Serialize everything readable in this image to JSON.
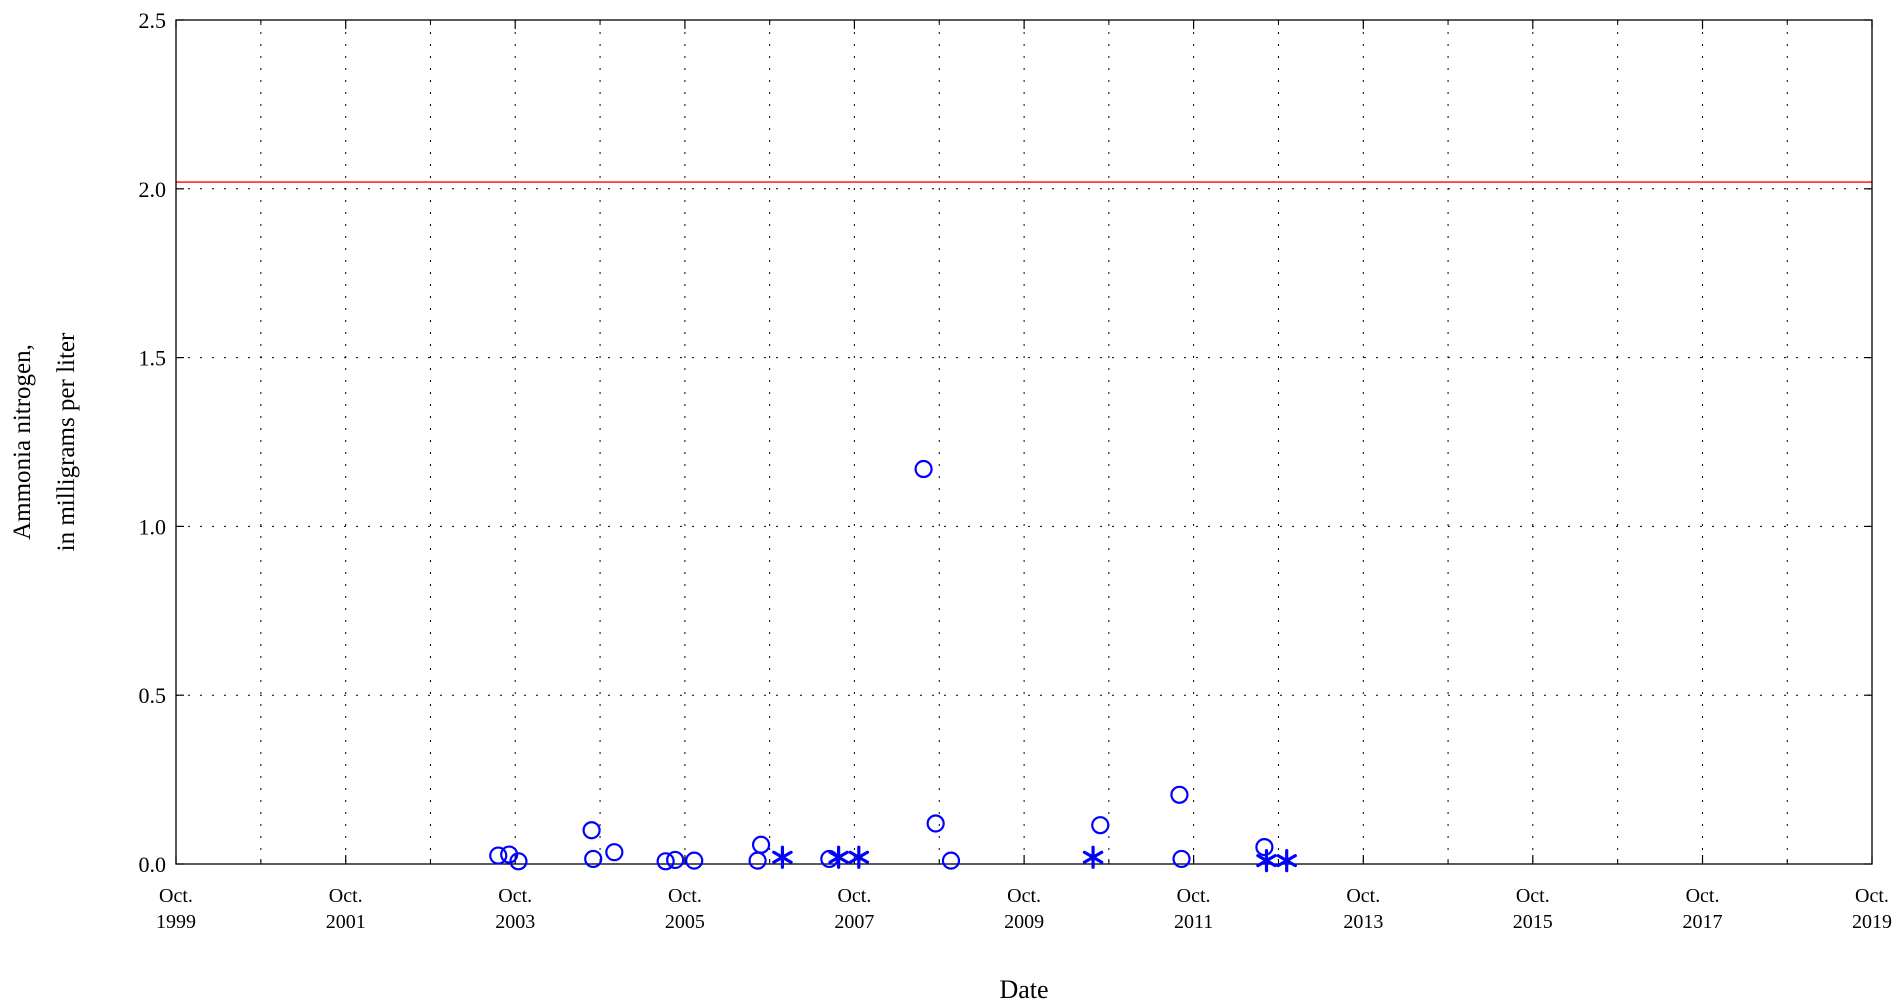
{
  "chart_data": {
    "type": "scatter",
    "title": "",
    "xlabel": "Date",
    "ylabel_line1": "Ammonia nitrogen,",
    "ylabel_line2": "in milligrams per liter",
    "xlim": [
      "1999-10-01",
      "2019-10-01"
    ],
    "ylim": [
      0,
      2.5
    ],
    "y_ticks": [
      {
        "value": 0.0,
        "label": "0.0"
      },
      {
        "value": 0.5,
        "label": "0.5"
      },
      {
        "value": 1.0,
        "label": "1.0"
      },
      {
        "value": 1.5,
        "label": "1.5"
      },
      {
        "value": 2.0,
        "label": "2.0"
      },
      {
        "value": 2.5,
        "label": "2.5"
      }
    ],
    "x_ticks": [
      {
        "date": "1999-10-01",
        "line1": "Oct.",
        "line2": "1999"
      },
      {
        "date": "2001-10-01",
        "line1": "Oct.",
        "line2": "2001"
      },
      {
        "date": "2003-10-01",
        "line1": "Oct.",
        "line2": "2003"
      },
      {
        "date": "2005-10-01",
        "line1": "Oct.",
        "line2": "2005"
      },
      {
        "date": "2007-10-01",
        "line1": "Oct.",
        "line2": "2007"
      },
      {
        "date": "2009-10-01",
        "line1": "Oct.",
        "line2": "2009"
      },
      {
        "date": "2011-10-01",
        "line1": "Oct.",
        "line2": "2011"
      },
      {
        "date": "2013-10-01",
        "line1": "Oct.",
        "line2": "2013"
      },
      {
        "date": "2015-10-01",
        "line1": "Oct.",
        "line2": "2015"
      },
      {
        "date": "2017-10-01",
        "line1": "Oct.",
        "line2": "2017"
      },
      {
        "date": "2019-10-01",
        "line1": "Oct.",
        "line2": "2019"
      }
    ],
    "grid": true,
    "reference_line": {
      "y": 2.02,
      "color": "#ff0000"
    },
    "marker_color": "#0000ff",
    "series": [
      {
        "marker": "circle",
        "points": [
          {
            "x": "2003-07-20",
            "y": 0.025
          },
          {
            "x": "2003-09-05",
            "y": 0.028
          },
          {
            "x": "2003-10-15",
            "y": 0.008
          },
          {
            "x": "2004-08-25",
            "y": 0.1
          },
          {
            "x": "2004-09-01",
            "y": 0.015
          },
          {
            "x": "2004-12-01",
            "y": 0.035
          },
          {
            "x": "2005-07-10",
            "y": 0.008
          },
          {
            "x": "2005-08-20",
            "y": 0.012
          },
          {
            "x": "2005-11-10",
            "y": 0.01
          },
          {
            "x": "2006-08-10",
            "y": 0.01
          },
          {
            "x": "2006-08-25",
            "y": 0.057
          },
          {
            "x": "2007-06-15",
            "y": 0.015
          },
          {
            "x": "2008-07-25",
            "y": 1.17
          },
          {
            "x": "2008-09-15",
            "y": 0.12
          },
          {
            "x": "2008-11-20",
            "y": 0.01
          },
          {
            "x": "2010-08-25",
            "y": 0.115
          },
          {
            "x": "2011-08-01",
            "y": 0.205
          },
          {
            "x": "2011-08-10",
            "y": 0.015
          },
          {
            "x": "2012-08-01",
            "y": 0.05
          }
        ]
      },
      {
        "marker": "asterisk",
        "points": [
          {
            "x": "2006-11-25",
            "y": 0.02
          },
          {
            "x": "2007-07-25",
            "y": 0.02
          },
          {
            "x": "2007-10-20",
            "y": 0.02
          },
          {
            "x": "2010-07-25",
            "y": 0.02
          },
          {
            "x": "2012-08-10",
            "y": 0.01
          },
          {
            "x": "2012-11-05",
            "y": 0.01
          }
        ]
      }
    ]
  }
}
